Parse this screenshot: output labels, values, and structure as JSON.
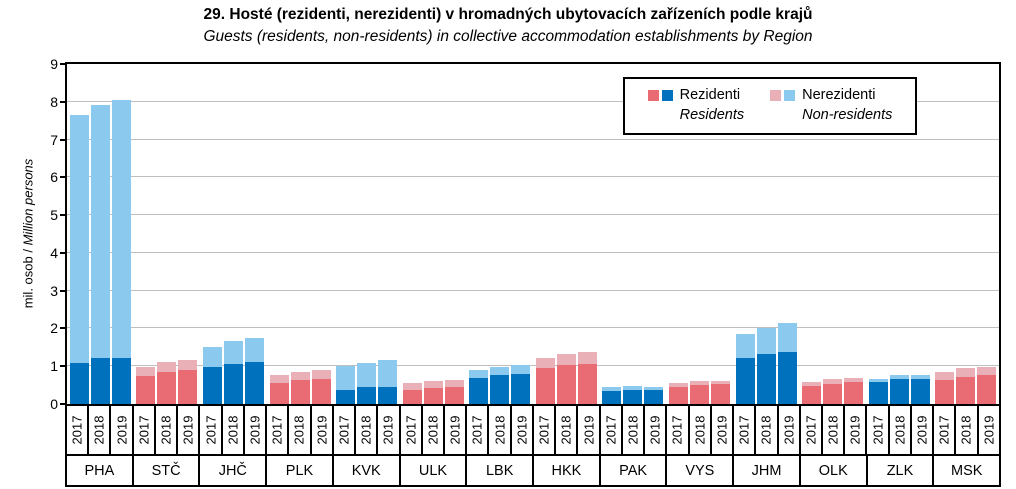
{
  "title": "29. Hosté (rezidenti, nerezidenti) v hromadných ubytovacích zařízeních podle krajů",
  "subtitle": "Guests (residents, non-residents) in collective accommodation establishments by Region",
  "y_axis": {
    "label_cs": "mil. osob / ",
    "label_en": "Million persons"
  },
  "legend": {
    "residents_cs": "Rezidenti",
    "residents_en": "Residents",
    "non_residents_cs": "Nerezidenti",
    "non_residents_en": "Non-residents"
  },
  "colors": {
    "residents_blue": "#0071bc",
    "non_residents_blue": "#8bc9ee",
    "residents_red": "#e96c74",
    "non_residents_red": "#e9b0b7",
    "gridline": "#bfbfbf",
    "axis": "#000000"
  },
  "chart_data": {
    "type": "bar",
    "stacked": true,
    "title": "29. Hosté (rezidenti, nerezidenti) v hromadných ubytovacích zařízeních podle krajů",
    "subtitle": "Guests (residents, non-residents) in collective accommodation establishments by Region",
    "ylabel": "mil. osob / Million persons",
    "ylim": [
      0,
      9
    ],
    "y_ticks": [
      0,
      1,
      2,
      3,
      4,
      5,
      6,
      7,
      8,
      9
    ],
    "grid": true,
    "legend_position": "top-right-inside",
    "years": [
      "2017",
      "2018",
      "2019"
    ],
    "series_names": [
      "Rezidenti / Residents",
      "Nerezidenti / Non-residents"
    ],
    "regions": [
      {
        "code": "PHA",
        "color_group": "blue",
        "residents": [
          1.08,
          1.22,
          1.21
        ],
        "non_residents": [
          6.57,
          6.7,
          6.83
        ]
      },
      {
        "code": "STČ",
        "color_group": "red",
        "residents": [
          0.73,
          0.84,
          0.9
        ],
        "non_residents": [
          0.24,
          0.27,
          0.27
        ]
      },
      {
        "code": "JHČ",
        "color_group": "blue",
        "residents": [
          0.97,
          1.05,
          1.12
        ],
        "non_residents": [
          0.55,
          0.63,
          0.63
        ]
      },
      {
        "code": "PLK",
        "color_group": "red",
        "residents": [
          0.56,
          0.63,
          0.66
        ],
        "non_residents": [
          0.21,
          0.23,
          0.23
        ]
      },
      {
        "code": "KVK",
        "color_group": "blue",
        "residents": [
          0.37,
          0.45,
          0.46
        ],
        "non_residents": [
          0.64,
          0.64,
          0.7
        ]
      },
      {
        "code": "ULK",
        "color_group": "red",
        "residents": [
          0.38,
          0.42,
          0.44
        ],
        "non_residents": [
          0.18,
          0.19,
          0.2
        ]
      },
      {
        "code": "LBK",
        "color_group": "blue",
        "residents": [
          0.69,
          0.76,
          0.79
        ],
        "non_residents": [
          0.22,
          0.22,
          0.23
        ]
      },
      {
        "code": "HKK",
        "color_group": "red",
        "residents": [
          0.95,
          1.02,
          1.06
        ],
        "non_residents": [
          0.28,
          0.3,
          0.33
        ]
      },
      {
        "code": "PAK",
        "color_group": "blue",
        "residents": [
          0.34,
          0.37,
          0.36
        ],
        "non_residents": [
          0.1,
          0.1,
          0.08
        ]
      },
      {
        "code": "VYS",
        "color_group": "red",
        "residents": [
          0.44,
          0.5,
          0.52
        ],
        "non_residents": [
          0.12,
          0.11,
          0.09
        ]
      },
      {
        "code": "JHM",
        "color_group": "blue",
        "residents": [
          1.23,
          1.32,
          1.38
        ],
        "non_residents": [
          0.62,
          0.7,
          0.76
        ]
      },
      {
        "code": "OLK",
        "color_group": "red",
        "residents": [
          0.47,
          0.53,
          0.57
        ],
        "non_residents": [
          0.11,
          0.13,
          0.13
        ]
      },
      {
        "code": "ZLK",
        "color_group": "blue",
        "residents": [
          0.58,
          0.66,
          0.65
        ],
        "non_residents": [
          0.08,
          0.1,
          0.12
        ]
      },
      {
        "code": "MSK",
        "color_group": "red",
        "residents": [
          0.64,
          0.72,
          0.77
        ],
        "non_residents": [
          0.2,
          0.24,
          0.2
        ]
      }
    ]
  }
}
